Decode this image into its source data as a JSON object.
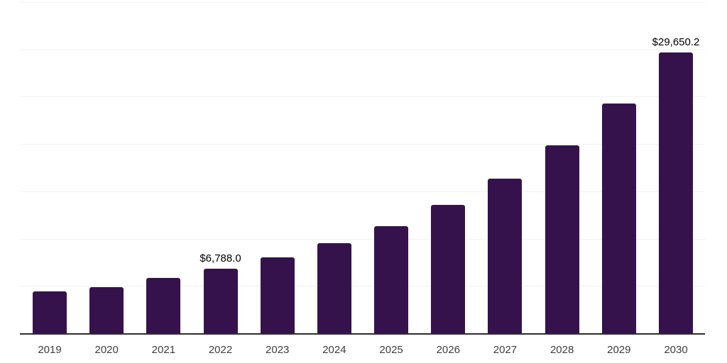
{
  "chart_data": {
    "type": "bar",
    "title": "",
    "xlabel": "",
    "ylabel": "",
    "categories": [
      "2019",
      "2020",
      "2021",
      "2022",
      "2023",
      "2024",
      "2025",
      "2026",
      "2027",
      "2028",
      "2029",
      "2030"
    ],
    "values": [
      4420,
      4870,
      5870,
      6788.0,
      8000,
      9540,
      11300,
      13540,
      16340,
      19860,
      24280,
      29650.2
    ],
    "value_labels": [
      "",
      "",
      "",
      "$6,788.0",
      "",
      "",
      "",
      "",
      "",
      "",
      "",
      "$29,650.2"
    ],
    "ylim": [
      0,
      35000
    ],
    "gridline_step": 5000,
    "grid": "horizontal",
    "legend": "none",
    "y_axis_tick_labels": "none"
  },
  "colors": {
    "bar": "#36124D",
    "gridline": "#f2f2f2",
    "axis_line": "#2e2e2e",
    "category_label": "#3d3d3d",
    "value_label": "#000000",
    "background": "#ffffff"
  }
}
